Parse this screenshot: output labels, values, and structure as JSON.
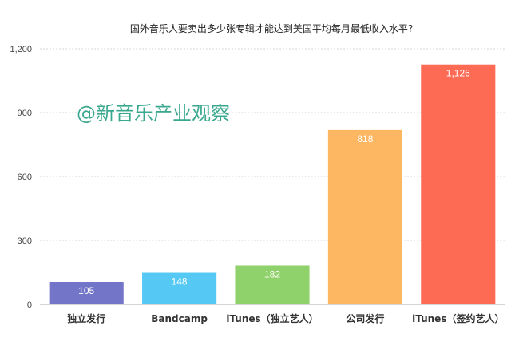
{
  "watermark": "@新音乐产业观察",
  "chart_data": {
    "type": "bar",
    "title": "国外音乐人要卖出多少张专辑才能达到美国平均每月最低收入水平?",
    "categories": [
      "独立发行",
      "Bandcamp",
      "iTunes（独立艺人）",
      "公司发行",
      "iTunes（签约艺人）"
    ],
    "values": [
      105,
      148,
      182,
      818,
      1126
    ],
    "data_labels": [
      "105",
      "148",
      "182",
      "818",
      "1,126"
    ],
    "colors": [
      "#7375c9",
      "#55c8f4",
      "#8fd16a",
      "#fdb763",
      "#fd6b55"
    ],
    "ylim": [
      0,
      1200
    ],
    "yticks": [
      0,
      300,
      600,
      900,
      1200
    ],
    "ytick_labels": [
      "0",
      "300",
      "600",
      "900",
      "1,200"
    ],
    "grid": true,
    "xlabel": "",
    "ylabel": ""
  }
}
